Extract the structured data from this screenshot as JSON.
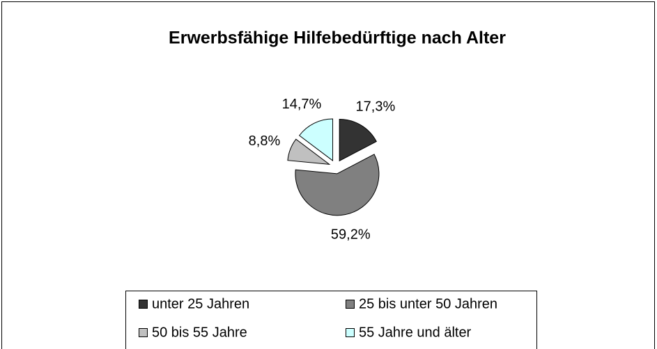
{
  "chart_data": {
    "type": "pie",
    "title": "Erwerbsfähige Hilfebedürftige nach Alter",
    "categories": [
      "unter 25 Jahren",
      "25 bis unter 50 Jahren",
      "50 bis 55 Jahre",
      "55 Jahre und älter"
    ],
    "values": [
      17.3,
      59.2,
      8.8,
      14.7
    ],
    "value_labels": [
      "17,3%",
      "59,2%",
      "8,8%",
      "14,7%"
    ],
    "colors": [
      "#333333",
      "#808080",
      "#c0c0c0",
      "#ccffff"
    ]
  }
}
